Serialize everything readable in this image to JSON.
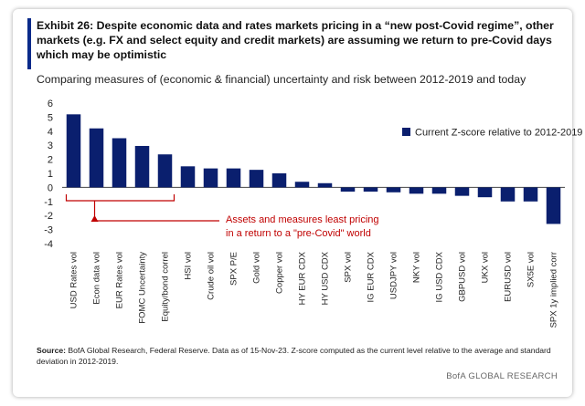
{
  "header": {
    "title": "Exhibit 26: Despite economic data and rates markets pricing in a “new post-Covid regime”, other markets (e.g. FX and select equity and credit markets) are assuming we return to pre-Covid days which may be optimistic",
    "subtitle": "Comparing measures of (economic & financial) uncertainty and risk between 2012-2019 and today"
  },
  "chart_data": {
    "type": "bar",
    "categories": [
      "USD Rates vol",
      "Econ data vol",
      "EUR Rates vol",
      "FOMC Uncertainty",
      "Equity/bond correl",
      "HSI vol",
      "Crude oil vol",
      "SPX P/E",
      "Gold vol",
      "Copper vol",
      "HY EUR CDX",
      "HY USD CDX",
      "SPX vol",
      "IG EUR CDX",
      "USDJPY vol",
      "NKY vol",
      "IG USD CDX",
      "GBPUSD vol",
      "UKX vol",
      "EURUSD vol",
      "SX5E vol",
      "SPX 1y implied corr"
    ],
    "series": [
      {
        "name": "Current Z-score relative to 2012-2019",
        "values": [
          5.2,
          4.2,
          3.5,
          2.95,
          2.35,
          1.5,
          1.35,
          1.35,
          1.25,
          1.0,
          0.4,
          0.3,
          -0.3,
          -0.3,
          -0.35,
          -0.45,
          -0.45,
          -0.6,
          -0.7,
          -1.0,
          -1.0,
          -2.6
        ]
      }
    ],
    "ylim": [
      -4,
      6
    ],
    "yticks": [
      6,
      5,
      4,
      3,
      2,
      1,
      0,
      -1,
      -2,
      -3,
      -4
    ],
    "legend_position": "top-right",
    "grid": false,
    "colors": {
      "bar": "#0a1f6e",
      "annotation": "#c00000",
      "axis": "#444444"
    },
    "annotation": {
      "line1": "Assets and measures least pricing",
      "line2": "in a return to a \"pre-Covid\" world"
    }
  },
  "footer": {
    "source_label": "Source:",
    "source_text": " BofA Global Research, Federal Reserve. Data as of 15-Nov-23. Z-score computed as the current level relative to the average and standard deviation in 2012-2019.",
    "brand": "BofA GLOBAL RESEARCH"
  }
}
